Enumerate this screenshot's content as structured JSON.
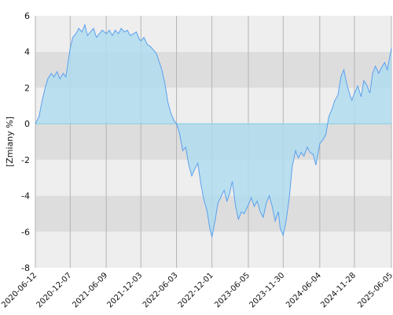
{
  "chart_data": {
    "type": "area",
    "ylabel": "[Zmiany %]",
    "xlabel": "",
    "ylim": [
      -8,
      6
    ],
    "yticks": [
      -8,
      -6,
      -4,
      -2,
      0,
      2,
      4,
      6
    ],
    "x_ticks": [
      "2020-06-12",
      "2020-12-07",
      "2021-06-09",
      "2021-12-03",
      "2022-06-03",
      "2022-12-01",
      "2023-06-05",
      "2023-11-30",
      "2024-06-04",
      "2024-11-28",
      "2025-06-05"
    ],
    "x_range": [
      "2020-06-12",
      "2025-06-05"
    ],
    "series": [
      {
        "x": [
          "2020-06-12",
          "2020-07-01",
          "2020-07-15",
          "2020-08-01",
          "2020-08-15",
          "2020-09-01",
          "2020-09-15",
          "2020-10-01",
          "2020-10-15",
          "2020-11-01",
          "2020-11-15",
          "2020-12-07",
          "2020-12-20",
          "2021-01-05",
          "2021-01-20",
          "2021-02-05",
          "2021-02-20",
          "2021-03-05",
          "2021-03-20",
          "2021-04-05",
          "2021-04-20",
          "2021-05-05",
          "2021-05-20",
          "2021-06-09",
          "2021-06-25",
          "2021-07-10",
          "2021-07-25",
          "2021-08-10",
          "2021-08-25",
          "2021-09-10",
          "2021-09-25",
          "2021-10-10",
          "2021-10-25",
          "2021-11-10",
          "2021-11-25",
          "2021-12-03",
          "2021-12-18",
          "2022-01-05",
          "2022-01-20",
          "2022-02-05",
          "2022-02-20",
          "2022-03-05",
          "2022-03-20",
          "2022-04-05",
          "2022-04-20",
          "2022-05-05",
          "2022-05-20",
          "2022-06-03",
          "2022-06-18",
          "2022-07-05",
          "2022-07-20",
          "2022-08-05",
          "2022-08-20",
          "2022-09-05",
          "2022-09-20",
          "2022-10-05",
          "2022-10-20",
          "2022-11-05",
          "2022-11-20",
          "2022-12-01",
          "2022-12-15",
          "2023-01-01",
          "2023-01-15",
          "2023-02-01",
          "2023-02-15",
          "2023-03-01",
          "2023-03-15",
          "2023-04-01",
          "2023-04-15",
          "2023-05-01",
          "2023-05-15",
          "2023-06-05",
          "2023-06-20",
          "2023-07-05",
          "2023-07-20",
          "2023-08-05",
          "2023-08-20",
          "2023-09-05",
          "2023-09-20",
          "2023-10-05",
          "2023-10-20",
          "2023-11-05",
          "2023-11-15",
          "2023-11-30",
          "2023-12-15",
          "2024-01-01",
          "2024-01-15",
          "2024-02-01",
          "2024-02-15",
          "2024-03-01",
          "2024-03-15",
          "2024-04-01",
          "2024-04-15",
          "2024-05-01",
          "2024-05-15",
          "2024-06-04",
          "2024-06-20",
          "2024-07-05",
          "2024-07-20",
          "2024-08-05",
          "2024-08-20",
          "2024-09-05",
          "2024-09-20",
          "2024-10-05",
          "2024-10-20",
          "2024-11-05",
          "2024-11-15",
          "2024-11-28",
          "2024-12-15",
          "2025-01-01",
          "2025-01-15",
          "2025-02-01",
          "2025-02-15",
          "2025-03-01",
          "2025-03-15",
          "2025-04-01",
          "2025-04-15",
          "2025-05-01",
          "2025-05-15",
          "2025-06-05"
        ],
        "values": [
          0.0,
          0.4,
          1.2,
          2.0,
          2.5,
          2.8,
          2.6,
          2.9,
          2.5,
          2.8,
          2.6,
          4.2,
          4.8,
          5.0,
          5.3,
          5.1,
          5.5,
          4.9,
          5.1,
          5.3,
          4.8,
          5.0,
          5.2,
          5.0,
          5.2,
          4.9,
          5.2,
          5.0,
          5.3,
          5.1,
          5.2,
          4.9,
          5.0,
          5.1,
          4.7,
          4.6,
          4.8,
          4.4,
          4.3,
          4.1,
          3.9,
          3.5,
          3.0,
          2.2,
          1.2,
          0.6,
          0.2,
          0.0,
          -0.5,
          -1.5,
          -1.3,
          -2.3,
          -2.9,
          -2.5,
          -2.2,
          -3.3,
          -4.2,
          -4.8,
          -5.8,
          -6.3,
          -5.5,
          -4.4,
          -4.1,
          -3.7,
          -4.3,
          -3.9,
          -3.2,
          -4.6,
          -5.3,
          -4.9,
          -5.0,
          -4.5,
          -4.1,
          -4.6,
          -4.3,
          -4.9,
          -5.2,
          -4.4,
          -4.0,
          -4.6,
          -5.4,
          -4.9,
          -5.8,
          -6.2,
          -5.4,
          -4.0,
          -2.4,
          -1.5,
          -1.9,
          -1.6,
          -1.8,
          -1.3,
          -1.6,
          -1.7,
          -2.3,
          -1.1,
          -0.9,
          -0.6,
          0.4,
          0.8,
          1.3,
          1.6,
          2.6,
          3.0,
          2.2,
          1.6,
          1.3,
          1.7,
          2.1,
          1.5,
          2.4,
          2.1,
          1.7,
          2.8,
          3.2,
          2.8,
          3.1,
          3.4,
          3.0,
          4.2
        ]
      }
    ],
    "colors": {
      "line": "#5aa0ee",
      "fill": "#b0dcee",
      "zero": "#7fd0e0",
      "band_light": "#eeeeee",
      "band_dark": "#dddddd",
      "grid": "#b4b4b4"
    },
    "grid": true,
    "legend": "none"
  }
}
